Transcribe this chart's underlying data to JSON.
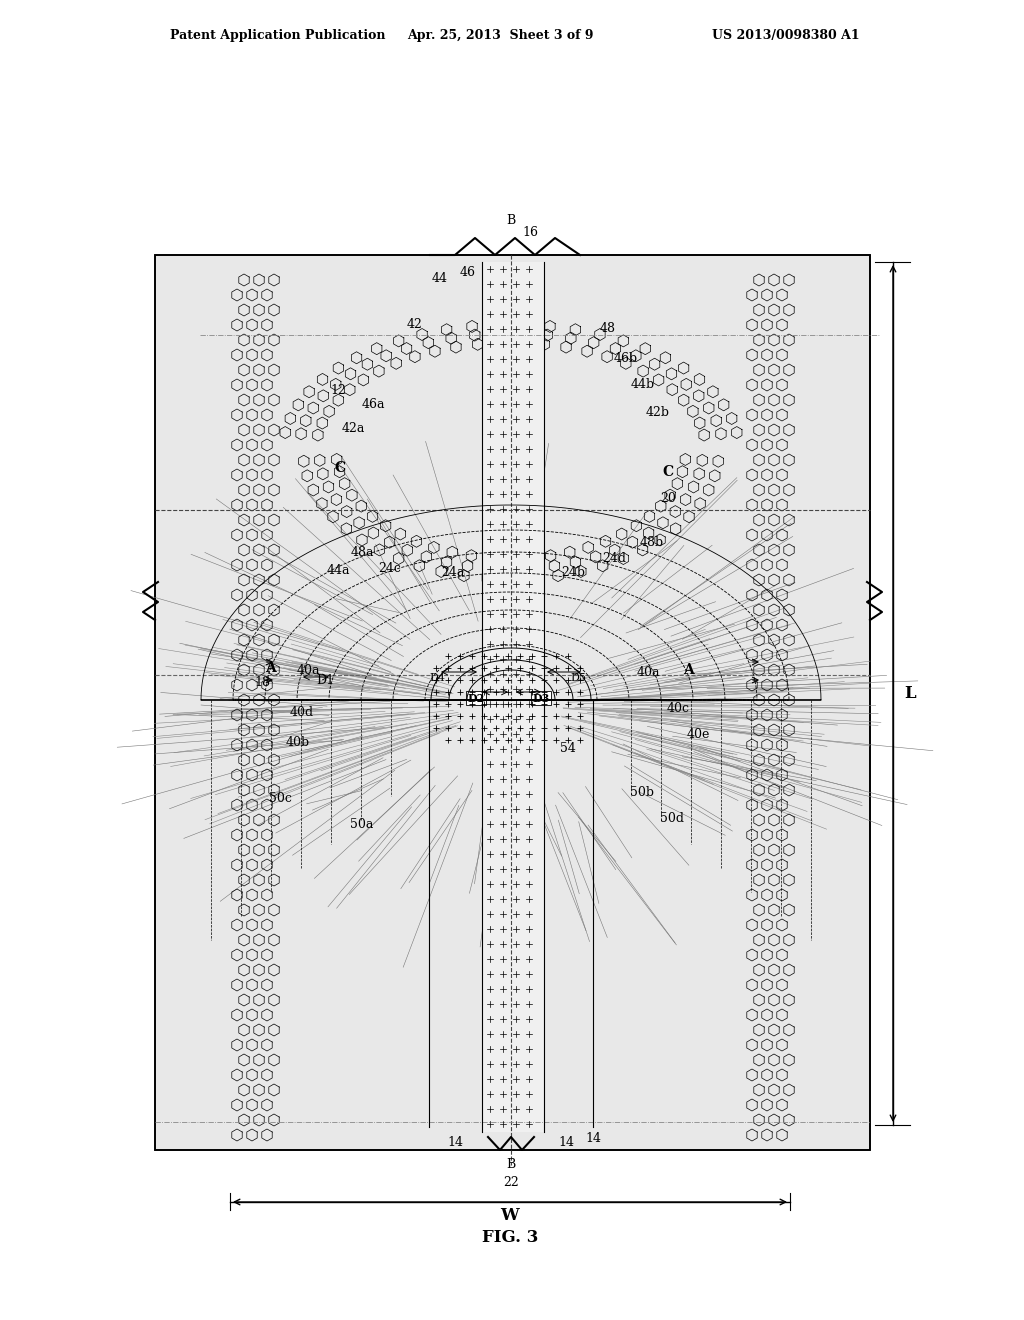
{
  "title": "FIG. 3",
  "header_left": "Patent Application Publication",
  "header_mid": "Apr. 25, 2013  Sheet 3 of 9",
  "header_right": "US 2013/0098380 A1",
  "bg_color": "#ffffff"
}
